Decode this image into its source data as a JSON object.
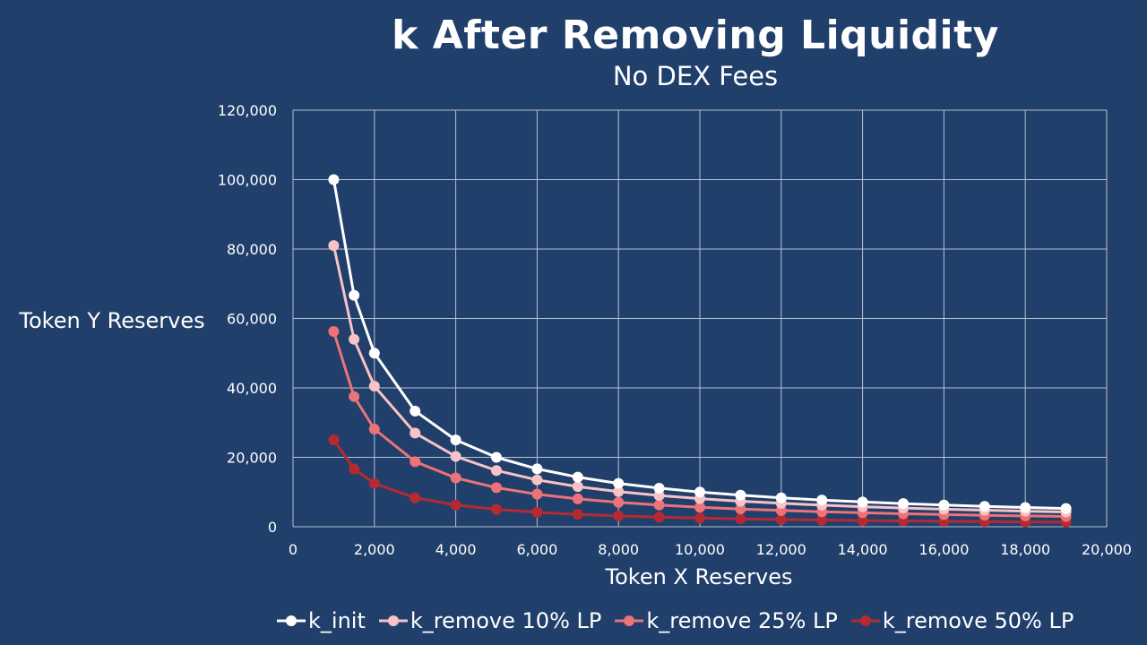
{
  "chart_data": {
    "type": "line",
    "title": "k After Removing Liquidity",
    "subtitle": "No DEX Fees",
    "xlabel": "Token X Reserves",
    "ylabel": "Token Y Reserves",
    "xlim": [
      0,
      20000
    ],
    "ylim": [
      0,
      120000
    ],
    "x_ticks": [
      "0",
      "2,000",
      "4,000",
      "6,000",
      "8,000",
      "10,000",
      "12,000",
      "14,000",
      "16,000",
      "18,000",
      "20,000"
    ],
    "y_ticks": [
      "0",
      "20,000",
      "40,000",
      "60,000",
      "80,000",
      "100,000",
      "120,000"
    ],
    "grid": true,
    "legend_position": "bottom",
    "x": [
      1000,
      1500,
      2000,
      3000,
      4000,
      5000,
      6000,
      7000,
      8000,
      9000,
      10000,
      11000,
      12000,
      13000,
      14000,
      15000,
      16000,
      17000,
      18000,
      19000
    ],
    "series": [
      {
        "name": "k_init",
        "color": "#ffffff",
        "values": [
          100000,
          66667,
          50000,
          33333,
          25000,
          20000,
          16667,
          14286,
          12500,
          11111,
          10000,
          9091,
          8333,
          7692,
          7143,
          6667,
          6250,
          5882,
          5556,
          5263
        ]
      },
      {
        "name": "k_remove 10% LP",
        "color": "#f7c3c6",
        "values": [
          81000,
          54000,
          40500,
          27000,
          20250,
          16200,
          13500,
          11571,
          10125,
          9000,
          8100,
          7364,
          6750,
          6231,
          5786,
          5400,
          5063,
          4765,
          4500,
          4263
        ]
      },
      {
        "name": "k_remove 25% LP",
        "color": "#ec7378",
        "values": [
          56250,
          37500,
          28125,
          18750,
          14063,
          11250,
          9375,
          8036,
          7031,
          6250,
          5625,
          5114,
          4688,
          4327,
          4018,
          3750,
          3516,
          3309,
          3125,
          2961
        ]
      },
      {
        "name": "k_remove 50% LP",
        "color": "#b52a32",
        "values": [
          25000,
          16667,
          12500,
          8333,
          6250,
          5000,
          4167,
          3571,
          3125,
          2778,
          2500,
          2273,
          2083,
          1923,
          1786,
          1667,
          1563,
          1471,
          1389,
          1316
        ]
      }
    ]
  }
}
